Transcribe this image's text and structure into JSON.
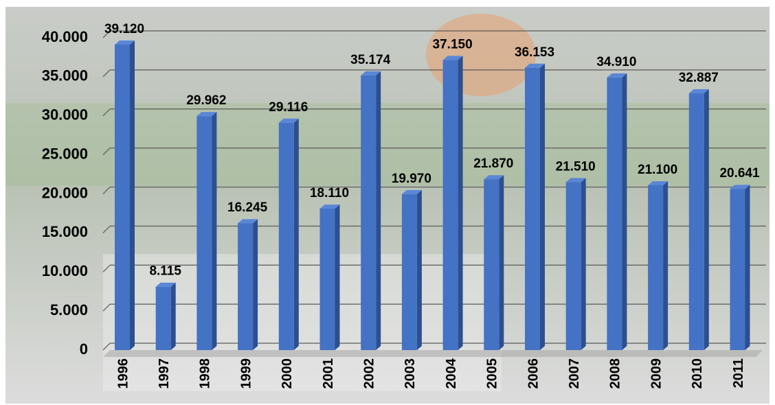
{
  "chart_data": {
    "type": "bar",
    "categories": [
      "1996",
      "1997",
      "1998",
      "1999",
      "2000",
      "2001",
      "2002",
      "2003",
      "2004",
      "2005",
      "2006",
      "2007",
      "2008",
      "2009",
      "2010",
      "2011"
    ],
    "values": [
      39120,
      8115,
      29962,
      16245,
      29116,
      18110,
      35174,
      19970,
      37150,
      21870,
      36153,
      21510,
      34910,
      21100,
      32887,
      20641
    ],
    "value_labels": [
      "39.120",
      "8.115",
      "29.962",
      "16.245",
      "29.116",
      "18.110",
      "35.174",
      "19.970",
      "37.150",
      "21.870",
      "36.153",
      "21.510",
      "34.910",
      "21.100",
      "32.887",
      "20.641"
    ],
    "color": "#4472c4",
    "ylim": [
      0,
      40000
    ],
    "yticks": [
      0,
      {
        "value": 5000,
        "label": "5.000"
      },
      {
        "value": 10000,
        "label": "10.000"
      },
      {
        "value": 15000,
        "label": "15.000"
      },
      {
        "value": 20000,
        "label": "20.000"
      },
      {
        "value": 25000,
        "label": "25.000"
      },
      {
        "value": 30000,
        "label": "30.000"
      },
      {
        "value": 35000,
        "label": "35.000"
      },
      {
        "value": 40000,
        "label": "40.000"
      }
    ],
    "grid": true
  }
}
